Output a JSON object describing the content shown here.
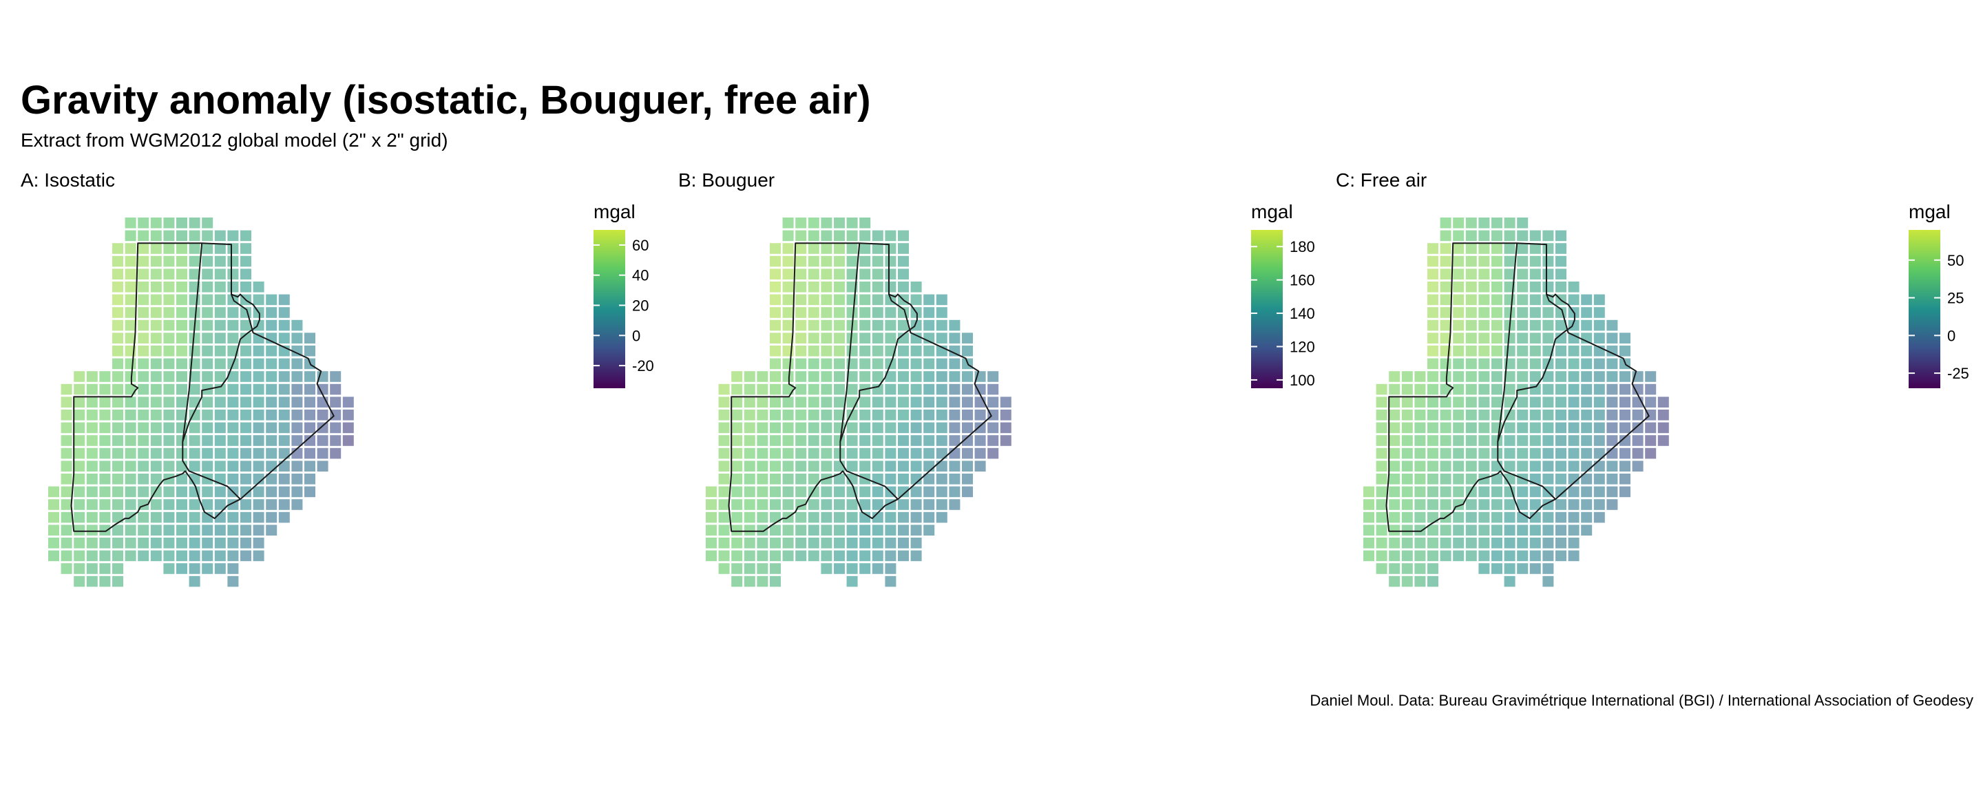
{
  "title": "Gravity anomaly (isostatic, Bouguer, free air)",
  "subtitle": "Extract from WGM2012 global model (2\" x 2\" grid)",
  "caption": "Daniel Moul. Data: Bureau Gravimétrique International (BGI) / International Association of Geodesy",
  "colors": {
    "viridis": [
      "#440154",
      "#3b528b",
      "#21908c",
      "#5dc963",
      "#c9e63c"
    ],
    "border": "#1a1a1a"
  },
  "panels": [
    {
      "id": "isostatic",
      "label": "A: Isostatic",
      "legend": {
        "title": "mgal",
        "min": -35,
        "max": 70,
        "ticks": [
          {
            "value": 60,
            "label": "60"
          },
          {
            "value": 40,
            "label": "40"
          },
          {
            "value": 20,
            "label": "20"
          },
          {
            "value": 0,
            "label": "0"
          },
          {
            "value": -20,
            "label": "-20"
          }
        ]
      }
    },
    {
      "id": "bouguer",
      "label": "B: Bouguer",
      "legend": {
        "title": "mgal",
        "min": 95,
        "max": 190,
        "ticks": [
          {
            "value": 180,
            "label": "180"
          },
          {
            "value": 160,
            "label": "160"
          },
          {
            "value": 140,
            "label": "140"
          },
          {
            "value": 120,
            "label": "120"
          },
          {
            "value": 100,
            "label": "100"
          }
        ]
      }
    },
    {
      "id": "free-air",
      "label": "C: Free air",
      "legend": {
        "title": "mgal",
        "min": -35,
        "max": 70,
        "ticks": [
          {
            "value": 50,
            "label": "50"
          },
          {
            "value": 25,
            "label": "25"
          },
          {
            "value": 0,
            "label": "0"
          },
          {
            "value": -25,
            "label": "-25"
          }
        ]
      }
    }
  ]
}
